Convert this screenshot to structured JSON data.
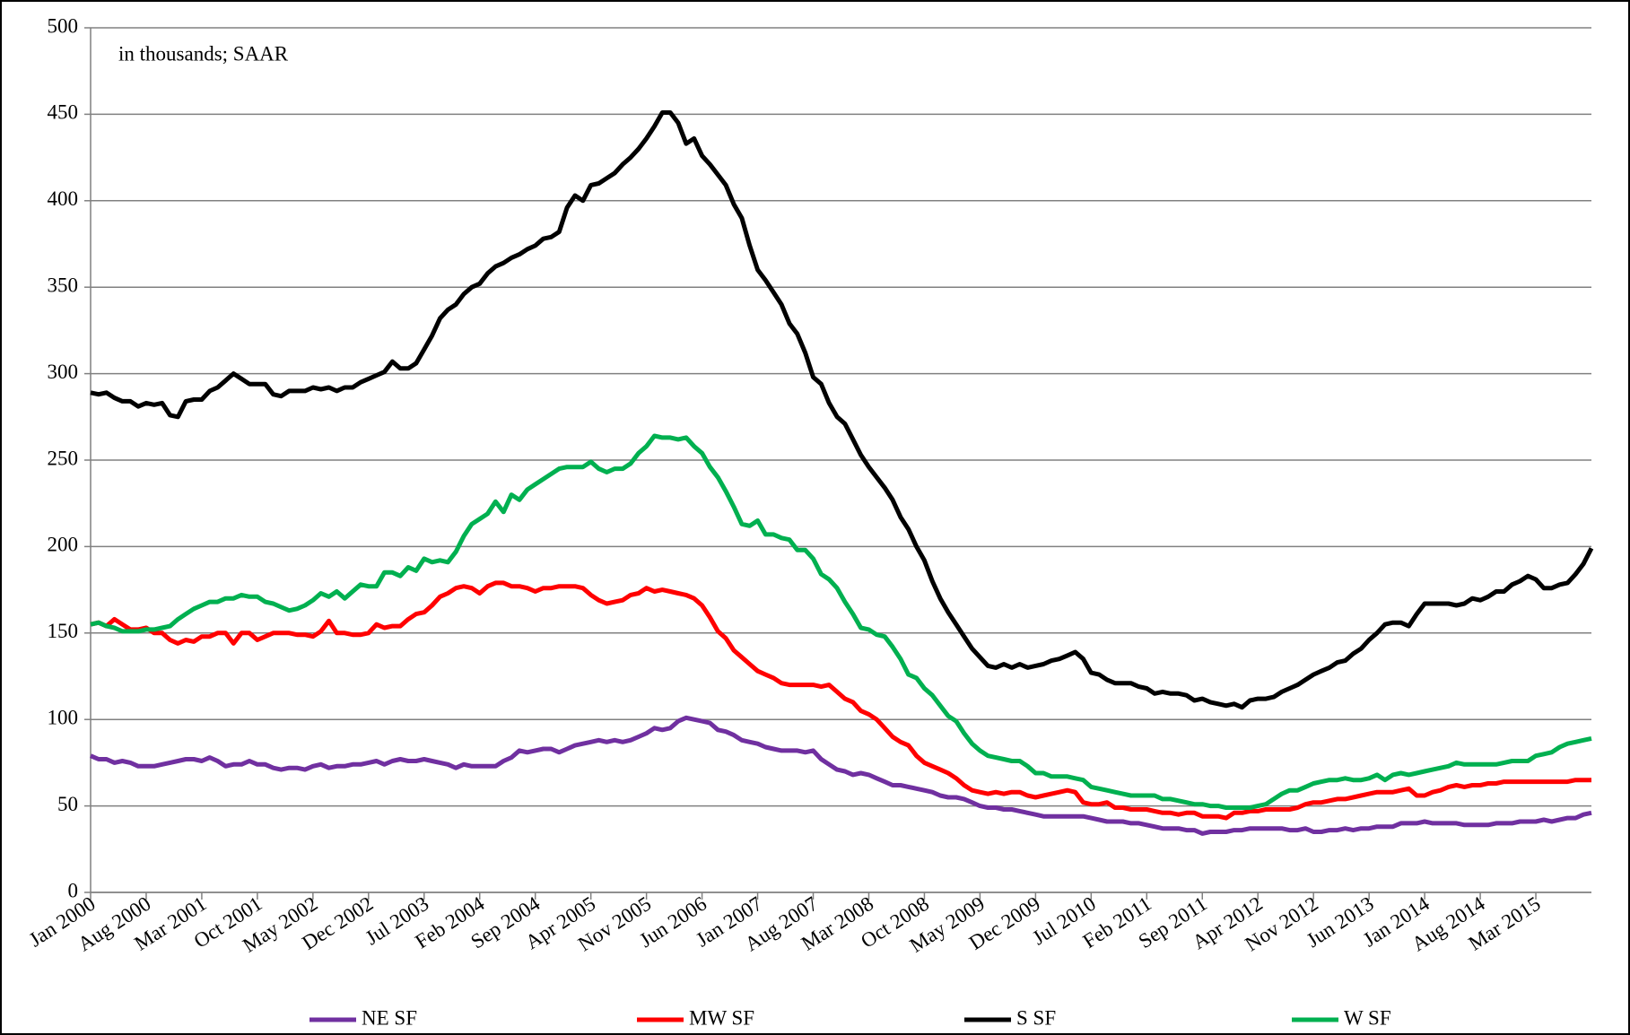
{
  "chart_data": {
    "type": "line",
    "annotation": "in thousands; SAAR",
    "categories": [
      "Jan 2000",
      null,
      null,
      null,
      null,
      null,
      null,
      "Aug 2000",
      null,
      null,
      null,
      null,
      null,
      null,
      "Mar 2001",
      null,
      null,
      null,
      null,
      null,
      null,
      "Oct 2001",
      null,
      null,
      null,
      null,
      null,
      null,
      "May 2002",
      null,
      null,
      null,
      null,
      null,
      null,
      "Dec 2002",
      null,
      null,
      null,
      null,
      null,
      null,
      "Jul 2003",
      null,
      null,
      null,
      null,
      null,
      null,
      "Feb 2004",
      null,
      null,
      null,
      null,
      null,
      null,
      "Sep 2004",
      null,
      null,
      null,
      null,
      null,
      null,
      "Apr 2005",
      null,
      null,
      null,
      null,
      null,
      null,
      "Nov 2005",
      null,
      null,
      null,
      null,
      null,
      null,
      "Jun 2006",
      null,
      null,
      null,
      null,
      null,
      null,
      "Jan 2007",
      null,
      null,
      null,
      null,
      null,
      null,
      "Aug 2007",
      null,
      null,
      null,
      null,
      null,
      null,
      "Mar 2008",
      null,
      null,
      null,
      null,
      null,
      null,
      "Oct 2008",
      null,
      null,
      null,
      null,
      null,
      null,
      "May 2009",
      null,
      null,
      null,
      null,
      null,
      null,
      "Dec 2009",
      null,
      null,
      null,
      null,
      null,
      null,
      "Jul 2010",
      null,
      null,
      null,
      null,
      null,
      null,
      "Feb 2011",
      null,
      null,
      null,
      null,
      null,
      null,
      "Sep 2011",
      null,
      null,
      null,
      null,
      null,
      null,
      "Apr 2012",
      null,
      null,
      null,
      null,
      null,
      null,
      "Nov 2012",
      null,
      null,
      null,
      null,
      null,
      null,
      "Jun 2013",
      null,
      null,
      null,
      null,
      null,
      null,
      "Jan 2014",
      null,
      null,
      null,
      null,
      null,
      null,
      "Aug 2014",
      null,
      null,
      null,
      null,
      null,
      null,
      "Mar 2015",
      null,
      null,
      null,
      null,
      null,
      null,
      null
    ],
    "series": [
      {
        "name": "NE SF",
        "color": "#7030a0",
        "values": [
          79,
          77,
          77,
          75,
          76,
          75,
          73,
          73,
          73,
          74,
          75,
          76,
          77,
          77,
          76,
          78,
          76,
          73,
          74,
          74,
          76,
          74,
          74,
          72,
          71,
          72,
          72,
          71,
          73,
          74,
          72,
          73,
          73,
          74,
          74,
          75,
          76,
          74,
          76,
          77,
          76,
          76,
          77,
          76,
          75,
          74,
          72,
          74,
          73,
          73,
          73,
          73,
          76,
          78,
          82,
          81,
          82,
          83,
          83,
          81,
          83,
          85,
          86,
          87,
          88,
          87,
          88,
          87,
          88,
          90,
          92,
          95,
          94,
          95,
          99,
          101,
          100,
          99,
          98,
          94,
          93,
          91,
          88,
          87,
          86,
          84,
          83,
          82,
          82,
          82,
          81,
          82,
          77,
          74,
          71,
          70,
          68,
          69,
          68,
          66,
          64,
          62,
          62,
          61,
          60,
          59,
          58,
          56,
          55,
          55,
          54,
          52,
          50,
          49,
          49,
          48,
          48,
          47,
          46,
          45,
          44,
          44,
          44,
          44,
          44,
          44,
          43,
          42,
          41,
          41,
          41,
          40,
          40,
          39,
          38,
          37,
          37,
          37,
          36,
          36,
          34,
          35,
          35,
          35,
          36,
          36,
          37,
          37,
          37,
          37,
          37,
          36,
          36,
          37,
          35,
          35,
          36,
          36,
          37,
          36,
          37,
          37,
          38,
          38,
          38,
          40,
          40,
          40,
          41,
          40,
          40,
          40,
          40,
          39,
          39,
          39,
          39,
          40,
          40,
          40,
          41,
          41,
          41,
          42,
          41,
          42,
          43,
          43,
          45,
          46
        ]
      },
      {
        "name": "MW SF",
        "color": "#ff0000",
        "values": [
          155,
          156,
          154,
          158,
          155,
          152,
          152,
          153,
          150,
          150,
          146,
          144,
          146,
          145,
          148,
          148,
          150,
          150,
          144,
          150,
          150,
          146,
          148,
          150,
          150,
          150,
          149,
          149,
          148,
          151,
          157,
          150,
          150,
          149,
          149,
          150,
          155,
          153,
          154,
          154,
          158,
          161,
          162,
          166,
          171,
          173,
          176,
          177,
          176,
          173,
          177,
          179,
          179,
          177,
          177,
          176,
          174,
          176,
          176,
          177,
          177,
          177,
          176,
          172,
          169,
          167,
          168,
          169,
          172,
          173,
          176,
          174,
          175,
          174,
          173,
          172,
          170,
          166,
          159,
          151,
          147,
          140,
          136,
          132,
          128,
          126,
          124,
          121,
          120,
          120,
          120,
          120,
          119,
          120,
          116,
          112,
          110,
          105,
          103,
          100,
          95,
          90,
          87,
          85,
          79,
          75,
          73,
          71,
          69,
          66,
          62,
          59,
          58,
          57,
          58,
          57,
          58,
          58,
          56,
          55,
          56,
          57,
          58,
          59,
          58,
          52,
          51,
          51,
          52,
          49,
          49,
          48,
          48,
          48,
          47,
          46,
          46,
          45,
          46,
          46,
          44,
          44,
          44,
          43,
          46,
          46,
          47,
          47,
          48,
          48,
          48,
          48,
          49,
          51,
          52,
          52,
          53,
          54,
          54,
          55,
          56,
          57,
          58,
          58,
          58,
          59,
          60,
          56,
          56,
          58,
          59,
          61,
          62,
          61,
          62,
          62,
          63,
          63,
          64,
          64,
          64,
          64,
          64,
          64,
          64,
          64,
          64,
          65,
          65,
          65
        ]
      },
      {
        "name": "S SF",
        "color": "#000000",
        "values": [
          289,
          288,
          289,
          286,
          284,
          284,
          281,
          283,
          282,
          283,
          276,
          275,
          284,
          285,
          285,
          290,
          292,
          296,
          300,
          297,
          294,
          294,
          294,
          288,
          287,
          290,
          290,
          290,
          292,
          291,
          292,
          290,
          292,
          292,
          295,
          297,
          299,
          301,
          307,
          303,
          303,
          306,
          314,
          322,
          332,
          337,
          340,
          346,
          350,
          352,
          358,
          362,
          364,
          367,
          369,
          372,
          374,
          378,
          379,
          382,
          396,
          403,
          400,
          409,
          410,
          413,
          416,
          421,
          425,
          430,
          436,
          443,
          451,
          451,
          445,
          433,
          436,
          426,
          421,
          415,
          409,
          398,
          390,
          374,
          360,
          354,
          347,
          340,
          329,
          323,
          312,
          298,
          294,
          283,
          275,
          271,
          262,
          253,
          246,
          240,
          234,
          227,
          217,
          210,
          200,
          192,
          180,
          170,
          162,
          155,
          148,
          141,
          136,
          131,
          130,
          132,
          130,
          132,
          130,
          131,
          132,
          134,
          135,
          137,
          139,
          135,
          127,
          126,
          123,
          121,
          121,
          121,
          119,
          118,
          115,
          116,
          115,
          115,
          114,
          111,
          112,
          110,
          109,
          108,
          109,
          107,
          111,
          112,
          112,
          113,
          116,
          118,
          120,
          123,
          126,
          128,
          130,
          133,
          134,
          138,
          141,
          146,
          150,
          155,
          156,
          156,
          154,
          161,
          167,
          167,
          167,
          167,
          166,
          167,
          170,
          169,
          171,
          174,
          174,
          178,
          180,
          183,
          181,
          176,
          176,
          178,
          179,
          184,
          190,
          199
        ]
      },
      {
        "name": "W SF",
        "color": "#00b050",
        "values": [
          155,
          156,
          154,
          153,
          151,
          151,
          151,
          152,
          152,
          153,
          154,
          158,
          161,
          164,
          166,
          168,
          168,
          170,
          170,
          172,
          171,
          171,
          168,
          167,
          165,
          163,
          164,
          166,
          169,
          173,
          171,
          174,
          170,
          174,
          178,
          177,
          177,
          185,
          185,
          183,
          188,
          186,
          193,
          191,
          192,
          191,
          197,
          206,
          213,
          216,
          219,
          226,
          220,
          230,
          227,
          233,
          236,
          239,
          242,
          245,
          246,
          246,
          246,
          249,
          245,
          243,
          245,
          245,
          248,
          254,
          258,
          264,
          263,
          263,
          262,
          263,
          258,
          254,
          246,
          240,
          232,
          223,
          213,
          212,
          215,
          207,
          207,
          205,
          204,
          198,
          198,
          193,
          184,
          181,
          176,
          168,
          161,
          153,
          152,
          149,
          148,
          142,
          135,
          126,
          124,
          118,
          114,
          108,
          102,
          99,
          92,
          86,
          82,
          79,
          78,
          77,
          76,
          76,
          73,
          69,
          69,
          67,
          67,
          67,
          66,
          65,
          61,
          60,
          59,
          58,
          57,
          56,
          56,
          56,
          56,
          54,
          54,
          53,
          52,
          51,
          51,
          50,
          50,
          49,
          49,
          49,
          49,
          50,
          51,
          54,
          57,
          59,
          59,
          61,
          63,
          64,
          65,
          65,
          66,
          65,
          65,
          66,
          68,
          65,
          68,
          69,
          68,
          69,
          70,
          71,
          72,
          73,
          75,
          74,
          74,
          74,
          74,
          74,
          75,
          76,
          76,
          76,
          79,
          80,
          81,
          84,
          86,
          87,
          88,
          89
        ]
      }
    ],
    "ylim": [
      0,
      500
    ],
    "yticks": [
      0,
      50,
      100,
      150,
      200,
      250,
      300,
      350,
      400,
      450,
      500
    ],
    "grid": true,
    "legend": "bottom"
  }
}
